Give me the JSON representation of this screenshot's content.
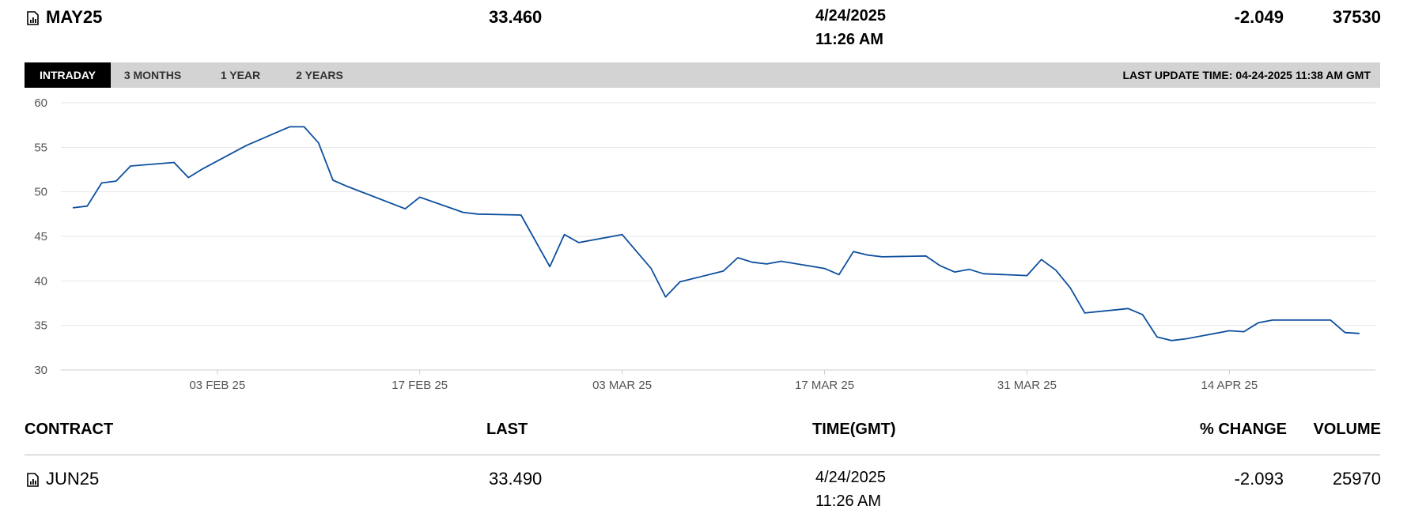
{
  "header": {
    "contract": "MAY25",
    "last": "33.460",
    "date": "4/24/2025",
    "time": "11:26 AM",
    "pct_change": "-2.049",
    "volume": "37530",
    "icon": "chart-doc-icon"
  },
  "tabs": [
    {
      "label": "INTRADAY",
      "active": true
    },
    {
      "label": "3 MONTHS",
      "active": false
    },
    {
      "label": "1 YEAR",
      "active": false
    },
    {
      "label": "2 YEARS",
      "active": false
    }
  ],
  "last_update": "LAST UPDATE TIME: 04-24-2025 11:38 AM GMT",
  "chart_data": {
    "type": "line",
    "title": "",
    "xlabel": "",
    "ylabel": "",
    "ylim": [
      30,
      60
    ],
    "yticks": [
      30,
      35,
      40,
      45,
      50,
      55,
      60
    ],
    "xlim": [
      "2025-01-24",
      "2025-04-23"
    ],
    "xticks": [
      {
        "date": "2025-02-03",
        "label": "03 FEB 25"
      },
      {
        "date": "2025-02-17",
        "label": "17 FEB 25"
      },
      {
        "date": "2025-03-03",
        "label": "03 MAR 25"
      },
      {
        "date": "2025-03-17",
        "label": "17 MAR 25"
      },
      {
        "date": "2025-03-31",
        "label": "31 MAR 25"
      },
      {
        "date": "2025-04-14",
        "label": "14 APR 25"
      }
    ],
    "grid": true,
    "line_color": "#0d4f9e",
    "series": [
      {
        "values": [
          [
            "2025-01-24",
            48.2
          ],
          [
            "2025-01-25",
            48.4
          ],
          [
            "2025-01-26",
            51.0
          ],
          [
            "2025-01-27",
            51.2
          ],
          [
            "2025-01-28",
            52.9
          ],
          [
            "2025-01-31",
            53.3
          ],
          [
            "2025-02-01",
            51.6
          ],
          [
            "2025-02-02",
            52.6
          ],
          [
            "2025-02-05",
            55.2
          ],
          [
            "2025-02-08",
            57.3
          ],
          [
            "2025-02-09",
            57.3
          ],
          [
            "2025-02-10",
            55.5
          ],
          [
            "2025-02-11",
            51.3
          ],
          [
            "2025-02-12",
            50.6
          ],
          [
            "2025-02-16",
            48.1
          ],
          [
            "2025-02-17",
            49.4
          ],
          [
            "2025-02-20",
            47.7
          ],
          [
            "2025-02-21",
            47.5
          ],
          [
            "2025-02-24",
            47.4
          ],
          [
            "2025-02-26",
            41.6
          ],
          [
            "2025-02-27",
            45.2
          ],
          [
            "2025-02-28",
            44.3
          ],
          [
            "2025-03-03",
            45.2
          ],
          [
            "2025-03-05",
            41.4
          ],
          [
            "2025-03-06",
            38.2
          ],
          [
            "2025-03-07",
            39.9
          ],
          [
            "2025-03-10",
            41.1
          ],
          [
            "2025-03-11",
            42.6
          ],
          [
            "2025-03-12",
            42.1
          ],
          [
            "2025-03-13",
            41.9
          ],
          [
            "2025-03-14",
            42.2
          ],
          [
            "2025-03-17",
            41.4
          ],
          [
            "2025-03-18",
            40.7
          ],
          [
            "2025-03-19",
            43.3
          ],
          [
            "2025-03-20",
            42.9
          ],
          [
            "2025-03-21",
            42.7
          ],
          [
            "2025-03-24",
            42.8
          ],
          [
            "2025-03-25",
            41.7
          ],
          [
            "2025-03-26",
            41.0
          ],
          [
            "2025-03-27",
            41.3
          ],
          [
            "2025-03-28",
            40.8
          ],
          [
            "2025-03-31",
            40.6
          ],
          [
            "2025-04-01",
            42.4
          ],
          [
            "2025-04-02",
            41.2
          ],
          [
            "2025-04-03",
            39.2
          ],
          [
            "2025-04-04",
            36.4
          ],
          [
            "2025-04-07",
            36.9
          ],
          [
            "2025-04-08",
            36.2
          ],
          [
            "2025-04-09",
            33.7
          ],
          [
            "2025-04-10",
            33.3
          ],
          [
            "2025-04-11",
            33.5
          ],
          [
            "2025-04-14",
            34.4
          ],
          [
            "2025-04-15",
            34.3
          ],
          [
            "2025-04-16",
            35.3
          ],
          [
            "2025-04-17",
            35.6
          ],
          [
            "2025-04-20",
            35.6
          ],
          [
            "2025-04-21",
            35.6
          ],
          [
            "2025-04-22",
            34.2
          ],
          [
            "2025-04-23",
            34.1
          ]
        ]
      }
    ]
  },
  "table": {
    "headers": {
      "contract": "CONTRACT",
      "last": "LAST",
      "time": "TIME(GMT)",
      "pct_change": "% CHANGE",
      "volume": "VOLUME"
    },
    "rows": [
      {
        "contract": "JUN25",
        "last": "33.490",
        "date": "4/24/2025",
        "time": "11:26 AM",
        "pct_change": "-2.093",
        "volume": "25970",
        "icon": "chart-doc-icon"
      }
    ]
  }
}
